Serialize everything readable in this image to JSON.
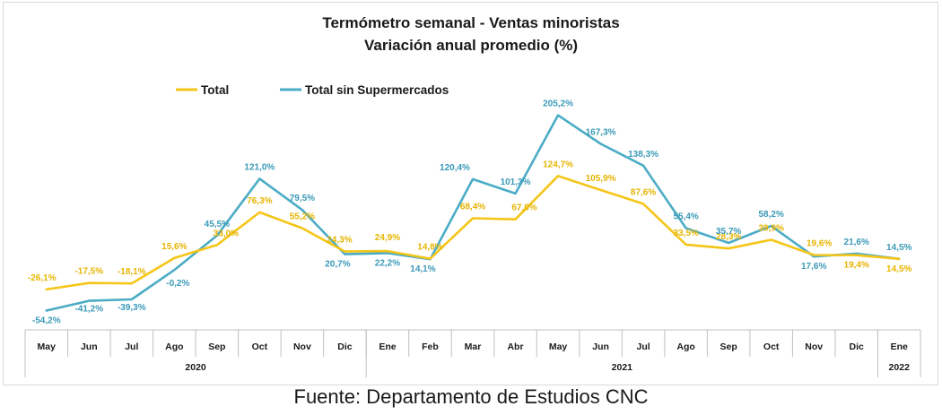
{
  "chart_data": {
    "type": "line",
    "title": "Termómetro semanal - Ventas minoristas",
    "subtitle": "Variación anual promedio (%)",
    "categories": [
      "May",
      "Jun",
      "Jul",
      "Ago",
      "Sep",
      "Oct",
      "Nov",
      "Dic",
      "Ene",
      "Feb",
      "Mar",
      "Abr",
      "May",
      "Jun",
      "Jul",
      "Ago",
      "Sep",
      "Oct",
      "Nov",
      "Dic",
      "Ene"
    ],
    "years": [
      {
        "label": "2020",
        "start": 0,
        "end": 7
      },
      {
        "label": "2021",
        "start": 8,
        "end": 19
      },
      {
        "label": "2022",
        "start": 20,
        "end": 20
      }
    ],
    "series": [
      {
        "name": "Total",
        "color": "#f5c518",
        "values": [
          -26.1,
          -17.5,
          -18.1,
          15.6,
          33.0,
          76.3,
          55.2,
          24.3,
          24.9,
          14.8,
          68.4,
          67.0,
          124.7,
          105.9,
          87.6,
          33.5,
          28.3,
          39.9,
          19.6,
          19.4,
          14.5
        ],
        "labels": [
          "-26,1%",
          "-17,5%",
          "-18,1%",
          "15,6%",
          "33,0%",
          "76,3%",
          "55,2%",
          "24,3%",
          "24,9%",
          "14,8%",
          "68,4%",
          "67,0%",
          "124,7%",
          "105,9%",
          "87,6%",
          "33,5%",
          "28,3%",
          "39,9%",
          "19,6%",
          "19,4%",
          "14,5%"
        ]
      },
      {
        "name": "Total sin Supermercados",
        "color": "#4bacc6",
        "values": [
          -54.2,
          -41.2,
          -39.3,
          -0.2,
          45.5,
          121.0,
          79.5,
          20.7,
          22.2,
          14.1,
          120.4,
          101.3,
          205.2,
          167.3,
          138.3,
          55.4,
          35.7,
          58.2,
          17.6,
          21.6,
          14.5
        ],
        "labels": [
          "-54,2%",
          "-41,2%",
          "-39,3%",
          "-0,2%",
          "45,5%",
          "121,0%",
          "79,5%",
          "20,7%",
          "22,2%",
          "14,1%",
          "120,4%",
          "101,3%",
          "205,2%",
          "167,3%",
          "138,3%",
          "55,4%",
          "35,7%",
          "58,2%",
          "17,6%",
          "21,6%",
          "14,5%"
        ]
      }
    ],
    "legend_position": "top-left",
    "grid": false
  },
  "source_text": "Fuente: Departamento de Estudios CNC"
}
